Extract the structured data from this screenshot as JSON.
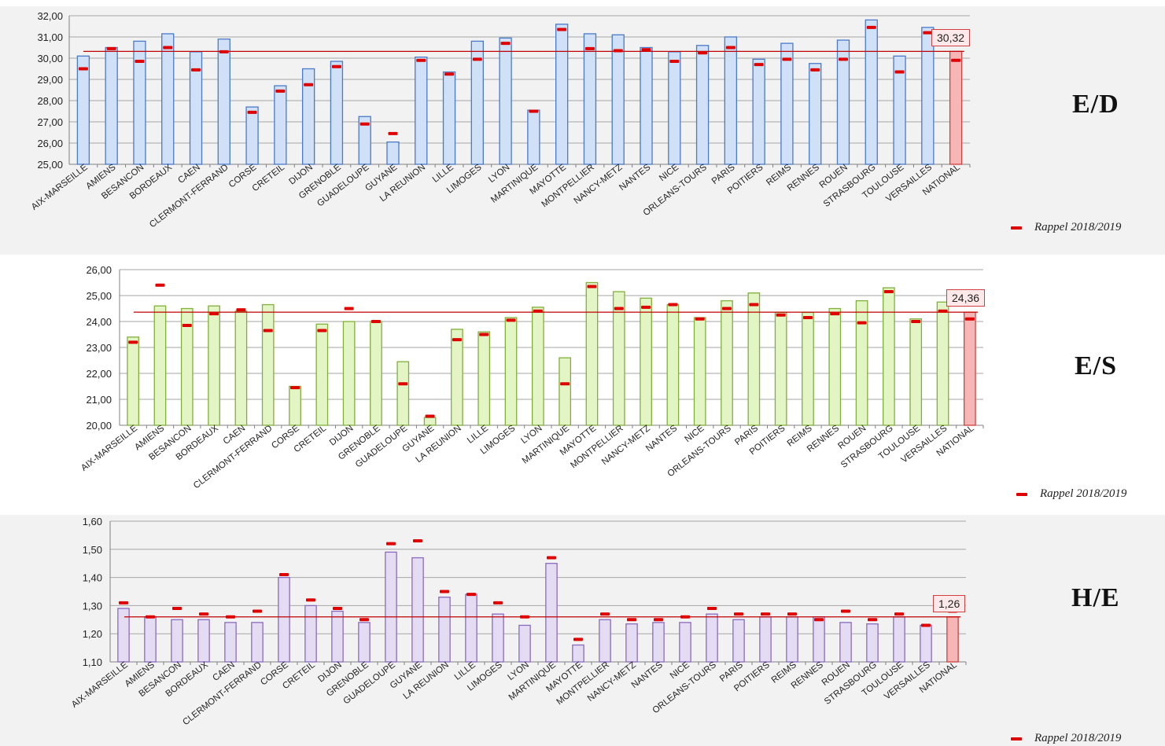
{
  "legend_label": "Rappel 2018/2019",
  "colors": {
    "ED_fill": "#cfe0f7",
    "ED_stroke": "#4a7ac8",
    "ES_fill": "#e4f5c5",
    "ES_stroke": "#7fb03a",
    "HE_fill": "#e4dcf3",
    "HE_stroke": "#8a6ac0",
    "national_fill": "#f7b6b6",
    "national_stroke": "#d04040",
    "reference_line": "#c00000",
    "marker": "#e00000"
  },
  "chart_data": [
    {
      "id": "ED",
      "type": "bar",
      "title": "E/D",
      "ylim": [
        25,
        32
      ],
      "ytick_labels": [
        "25,00",
        "26,00",
        "27,00",
        "28,00",
        "29,00",
        "30,00",
        "31,00",
        "32,00"
      ],
      "categories": [
        "AIX-MARSEILLE",
        "AMIENS",
        "BESANCON",
        "BORDEAUX",
        "CAEN",
        "CLERMONT-FERRAND",
        "CORSE",
        "CRETEIL",
        "DIJON",
        "GRENOBLE",
        "GUADELOUPE",
        "GUYANE",
        "LA REUNION",
        "LILLE",
        "LIMOGES",
        "LYON",
        "MARTINIQUE",
        "MAYOTTE",
        "MONTPELLIER",
        "NANCY-METZ",
        "NANTES",
        "NICE",
        "ORLEANS-TOURS",
        "PARIS",
        "POITIERS",
        "REIMS",
        "RENNES",
        "ROUEN",
        "STRASBOURG",
        "TOULOUSE",
        "VERSAILLES",
        "NATIONAL"
      ],
      "series": [
        {
          "values": [
            30.1,
            30.5,
            30.8,
            31.15,
            30.3,
            30.9,
            27.7,
            28.7,
            29.5,
            29.85,
            27.25,
            26.05,
            30.05,
            29.35,
            30.8,
            30.95,
            27.55,
            31.6,
            31.15,
            31.1,
            30.5,
            30.3,
            30.6,
            31.0,
            29.95,
            30.7,
            29.75,
            30.85,
            31.8,
            30.1,
            31.45,
            30.32
          ]
        },
        {
          "name": "Rappel 2018/2019",
          "values": [
            29.5,
            30.45,
            29.85,
            30.5,
            29.45,
            30.3,
            27.45,
            28.45,
            28.75,
            29.6,
            26.9,
            26.45,
            29.9,
            29.25,
            29.95,
            30.7,
            27.5,
            31.35,
            30.45,
            30.35,
            30.4,
            29.85,
            30.25,
            30.5,
            29.7,
            29.95,
            29.45,
            29.95,
            31.45,
            29.35,
            31.2,
            29.9
          ]
        }
      ],
      "reference_value": 30.32,
      "reference_label": "30,32",
      "grid": true
    },
    {
      "id": "ES",
      "type": "bar",
      "title": "E/S",
      "ylim": [
        20,
        26
      ],
      "ytick_labels": [
        "20,00",
        "21,00",
        "22,00",
        "23,00",
        "24,00",
        "25,00",
        "26,00"
      ],
      "categories": [
        "AIX-MARSEILLE",
        "AMIENS",
        "BESANCON",
        "BORDEAUX",
        "CAEN",
        "CLERMONT-FERRAND",
        "CORSE",
        "CRETEIL",
        "DIJON",
        "GRENOBLE",
        "GUADELOUPE",
        "GUYANE",
        "LA REUNION",
        "LILLE",
        "LIMOGES",
        "LYON",
        "MARTINIQUE",
        "MAYOTTE",
        "MONTPELLIER",
        "NANCY-METZ",
        "NANTES",
        "NICE",
        "ORLEANS-TOURS",
        "PARIS",
        "POITIERS",
        "REIMS",
        "RENNES",
        "ROUEN",
        "STRASBOURG",
        "TOULOUSE",
        "VERSAILLES",
        "NATIONAL"
      ],
      "series": [
        {
          "values": [
            23.4,
            24.6,
            24.5,
            24.6,
            24.4,
            24.65,
            21.5,
            23.9,
            24.0,
            24.0,
            22.45,
            20.3,
            23.7,
            23.6,
            24.15,
            24.55,
            22.6,
            25.5,
            25.15,
            24.9,
            24.65,
            24.15,
            24.8,
            25.1,
            24.35,
            24.35,
            24.5,
            24.8,
            25.3,
            24.1,
            24.75,
            24.36
          ]
        },
        {
          "name": "Rappel 2018/2019",
          "values": [
            23.2,
            25.4,
            23.85,
            24.3,
            24.45,
            23.65,
            21.45,
            23.65,
            24.5,
            24.0,
            21.6,
            20.35,
            23.3,
            23.5,
            24.05,
            24.4,
            21.6,
            25.35,
            24.5,
            24.55,
            24.65,
            24.1,
            24.5,
            24.65,
            24.25,
            24.15,
            24.3,
            23.95,
            25.15,
            24.0,
            24.4,
            24.1
          ]
        }
      ],
      "reference_value": 24.36,
      "reference_label": "24,36",
      "grid": true
    },
    {
      "id": "HE",
      "type": "bar",
      "title": "H/E",
      "ylim": [
        1.1,
        1.6
      ],
      "ytick_labels": [
        "1,10",
        "1,20",
        "1,30",
        "1,40",
        "1,50",
        "1,60"
      ],
      "categories": [
        "AIX-MARSEILLE",
        "AMIENS",
        "BESANCON",
        "BORDEAUX",
        "CAEN",
        "CLERMONT-FERRAND",
        "CORSE",
        "CRETEIL",
        "DIJON",
        "GRENOBLE",
        "GUADELOUPE",
        "GUYANE",
        "LA REUNION",
        "LILLE",
        "LIMOGES",
        "LYON",
        "MARTINIQUE",
        "MAYOTTE",
        "MONTPELLIER",
        "NANCY-METZ",
        "NANTES",
        "NICE",
        "ORLEANS-TOURS",
        "PARIS",
        "POITIERS",
        "REIMS",
        "RENNES",
        "ROUEN",
        "STRASBOURG",
        "TOULOUSE",
        "VERSAILLES",
        "NATIONAL"
      ],
      "series": [
        {
          "values": [
            1.29,
            1.26,
            1.25,
            1.25,
            1.24,
            1.24,
            1.4,
            1.3,
            1.28,
            1.24,
            1.49,
            1.47,
            1.33,
            1.34,
            1.27,
            1.23,
            1.45,
            1.16,
            1.25,
            1.235,
            1.24,
            1.24,
            1.27,
            1.25,
            1.26,
            1.26,
            1.26,
            1.24,
            1.235,
            1.26,
            1.23,
            1.26
          ]
        },
        {
          "name": "Rappel 2018/2019",
          "values": [
            1.31,
            1.26,
            1.29,
            1.27,
            1.26,
            1.28,
            1.41,
            1.32,
            1.29,
            1.25,
            1.52,
            1.53,
            1.35,
            1.34,
            1.31,
            1.26,
            1.47,
            1.18,
            1.27,
            1.25,
            1.25,
            1.26,
            1.29,
            1.27,
            1.27,
            1.27,
            1.25,
            1.28,
            1.25,
            1.27,
            1.23,
            1.28
          ]
        }
      ],
      "reference_value": 1.26,
      "reference_label": "1,26",
      "grid": true
    }
  ]
}
